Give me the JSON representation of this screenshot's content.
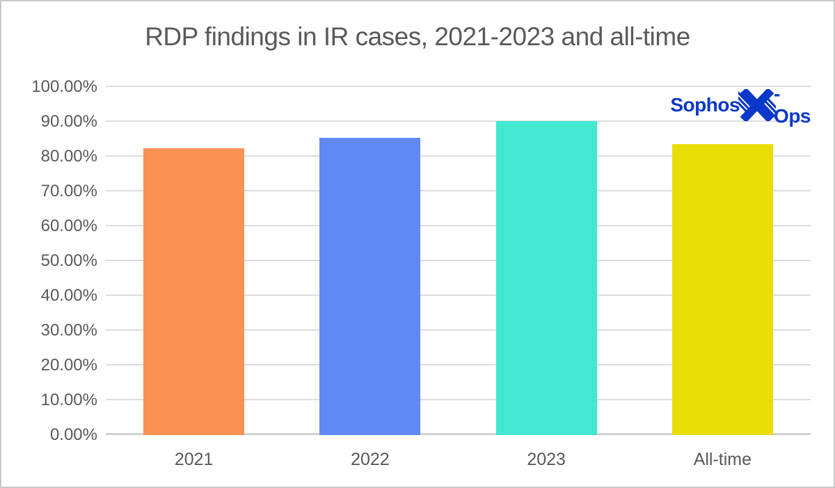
{
  "window": {
    "background": "#ffffff",
    "border_color": "#c9c9c9"
  },
  "chart_data": {
    "type": "bar",
    "title": "RDP findings in IR cases, 2021-2023 and all-time",
    "categories": [
      "2021",
      "2022",
      "2023",
      "All-time"
    ],
    "values": [
      82.5,
      85.5,
      90.2,
      83.6
    ],
    "unit": "%",
    "ylim": [
      0,
      100
    ],
    "ytick_step": 10,
    "ytick_labels": [
      "0.00%",
      "10.00%",
      "20.00%",
      "30.00%",
      "40.00%",
      "50.00%",
      "60.00%",
      "70.00%",
      "80.00%",
      "90.00%",
      "100.00%"
    ],
    "xlabel": "",
    "ylabel": "",
    "grid": true,
    "legend_position": "none",
    "bar_colors": [
      "#fb9153",
      "#6189f4",
      "#42e8d0",
      "#ebde07"
    ],
    "text_color": "#595959",
    "gridline_color": "#dcdcdc"
  },
  "logo": {
    "brand": "Sophos",
    "suffix": "-Ops",
    "color": "#0b38c8",
    "icon": "x-ops-x-icon"
  }
}
